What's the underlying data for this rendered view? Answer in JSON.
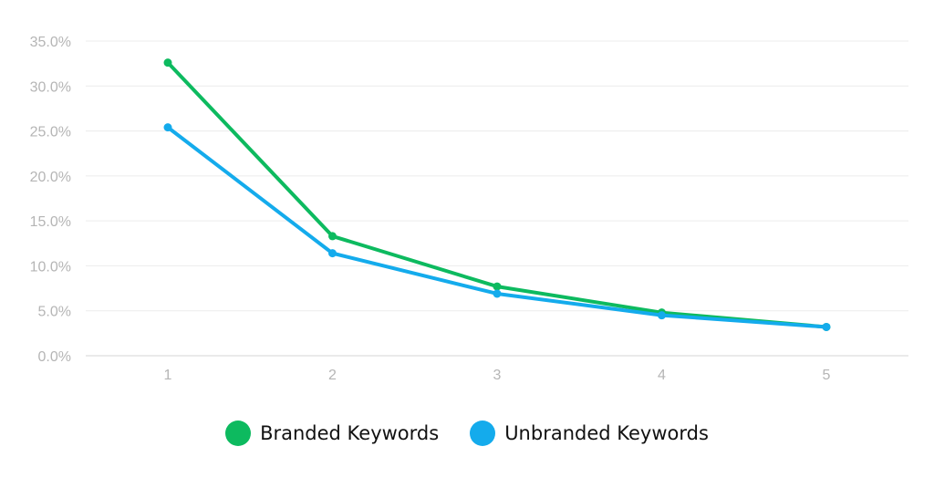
{
  "chart_data": {
    "type": "line",
    "x": [
      1,
      2,
      3,
      4,
      5
    ],
    "x_tick_labels": [
      "1",
      "2",
      "3",
      "4",
      "5"
    ],
    "y_tick_labels": [
      "35.0%",
      "30.0%",
      "25.0%",
      "20.0%",
      "15.0%",
      "10.0%",
      "5.0%",
      "0.0%"
    ],
    "ylim": [
      0,
      35
    ],
    "y_unit": "%",
    "grid": true,
    "legend_position": "bottom-center",
    "series": [
      {
        "name": "Branded Keywords",
        "color": "#0dba5f",
        "values": [
          32.6,
          13.3,
          7.7,
          4.8,
          3.2
        ]
      },
      {
        "name": "Unbranded Keywords",
        "color": "#14abec",
        "values": [
          25.4,
          11.4,
          6.9,
          4.5,
          3.2
        ]
      }
    ]
  }
}
